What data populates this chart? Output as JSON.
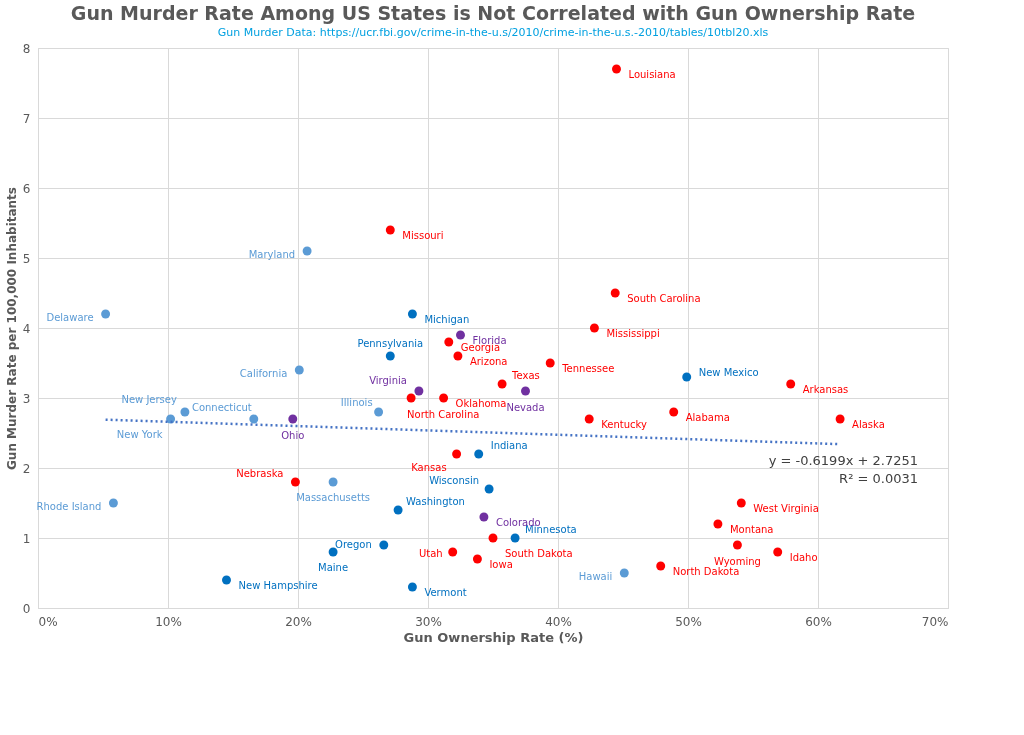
{
  "chart_data": {
    "type": "scatter",
    "title": "Gun Murder Rate Among US States is Not Correlated with Gun Ownership Rate",
    "subtitle": "Gun Murder Data: https://ucr.fbi.gov/crime-in-the-u.s/2010/crime-in-the-u.s.-2010/tables/10tbl20.xls",
    "xlabel": "Gun Ownership Rate (%)",
    "ylabel": "Gun Murder Rate per 100,000 Inhabitants",
    "xlim": [
      0,
      70
    ],
    "xticks": [
      {
        "value": 0,
        "label": "0%"
      },
      {
        "value": 10,
        "label": "10%"
      },
      {
        "value": 20,
        "label": "20%"
      },
      {
        "value": 30,
        "label": "30%"
      },
      {
        "value": 40,
        "label": "40%"
      },
      {
        "value": 50,
        "label": "50%"
      },
      {
        "value": 60,
        "label": "60%"
      },
      {
        "value": 70,
        "label": "70%"
      }
    ],
    "ylim": [
      0,
      8
    ],
    "yticks": [
      0,
      1,
      2,
      3,
      4,
      5,
      6,
      7,
      8
    ],
    "grid": true,
    "legend": false,
    "marker": "circle",
    "series": [
      {
        "color": "#ff0000",
        "x": [
          44.5,
          27.1,
          44.4,
          42.8,
          31.6,
          32.3,
          39.4,
          35.7,
          31.2,
          28.7,
          57.9,
          48.9,
          42.4,
          61.7,
          32.2,
          19.8,
          54.1,
          52.3,
          53.8,
          56.9,
          31.9,
          35.0,
          33.8,
          47.9
        ],
        "values": [
          7.7,
          5.4,
          4.5,
          4.0,
          3.8,
          3.6,
          3.5,
          3.2,
          3.0,
          3.0,
          3.2,
          2.8,
          2.7,
          2.7,
          2.2,
          1.8,
          1.5,
          1.2,
          0.9,
          0.8,
          0.8,
          1.0,
          0.7,
          0.6
        ]
      },
      {
        "color": "#5b9bd5",
        "x": [
          20.7,
          5.2,
          20.1,
          11.3,
          10.2,
          16.6,
          26.2,
          22.7,
          5.8,
          45.1
        ],
        "values": [
          5.1,
          4.2,
          3.4,
          2.8,
          2.7,
          2.7,
          2.8,
          1.8,
          1.5,
          0.5
        ]
      },
      {
        "color": "#0070c0",
        "x": [
          28.8,
          27.1,
          49.9,
          33.9,
          34.7,
          27.7,
          36.7,
          26.6,
          22.7,
          14.5,
          28.8
        ],
        "values": [
          4.2,
          3.6,
          3.3,
          2.2,
          1.7,
          1.4,
          1.0,
          0.9,
          0.8,
          0.4,
          0.3
        ]
      },
      {
        "color": "#7030a0",
        "x": [
          32.5,
          29.3,
          37.5,
          19.6,
          34.3
        ],
        "values": [
          3.9,
          3.1,
          3.1,
          2.7,
          1.3
        ]
      },
      {
        "type": "line",
        "color": "#4472c4",
        "line_style": "dotted",
        "marker": "none",
        "x": [
          5.2,
          61.7
        ],
        "values": [
          2.69,
          2.34
        ]
      }
    ],
    "annotations": [
      {
        "text": "Louisiana",
        "x": 44.5,
        "y": 7.7
      },
      {
        "text": "Missouri",
        "x": 27.1,
        "y": 5.4
      },
      {
        "text": "South Carolina",
        "x": 44.4,
        "y": 4.5
      },
      {
        "text": "Mississippi",
        "x": 42.8,
        "y": 4.0
      },
      {
        "text": "Georgia",
        "x": 31.6,
        "y": 3.8
      },
      {
        "text": "Arizona",
        "x": 32.3,
        "y": 3.6
      },
      {
        "text": "Tennessee",
        "x": 39.4,
        "y": 3.5
      },
      {
        "text": "Texas",
        "x": 35.7,
        "y": 3.2
      },
      {
        "text": "Oklahoma",
        "x": 31.2,
        "y": 3.0
      },
      {
        "text": "North Carolina",
        "x": 28.7,
        "y": 3.0
      },
      {
        "text": "Arkansas",
        "x": 57.9,
        "y": 3.2
      },
      {
        "text": "Alabama",
        "x": 48.9,
        "y": 2.8
      },
      {
        "text": "Kentucky",
        "x": 42.4,
        "y": 2.7
      },
      {
        "text": "Alaska",
        "x": 61.7,
        "y": 2.7
      },
      {
        "text": "Kansas",
        "x": 32.2,
        "y": 2.2
      },
      {
        "text": "Nebraska",
        "x": 19.8,
        "y": 1.8
      },
      {
        "text": "West Virginia",
        "x": 54.1,
        "y": 1.5
      },
      {
        "text": "Montana",
        "x": 52.3,
        "y": 1.2
      },
      {
        "text": "Wyoming",
        "x": 53.8,
        "y": 0.9
      },
      {
        "text": "Idaho",
        "x": 56.9,
        "y": 0.8
      },
      {
        "text": "Utah",
        "x": 31.9,
        "y": 0.8
      },
      {
        "text": "South Dakota",
        "x": 35.0,
        "y": 1.0
      },
      {
        "text": "Iowa",
        "x": 33.8,
        "y": 0.7
      },
      {
        "text": "North Dakota",
        "x": 47.9,
        "y": 0.6
      },
      {
        "text": "Maryland",
        "x": 20.7,
        "y": 5.1
      },
      {
        "text": "Delaware",
        "x": 5.2,
        "y": 4.2
      },
      {
        "text": "California",
        "x": 20.1,
        "y": 3.4
      },
      {
        "text": "New Jersey",
        "x": 11.3,
        "y": 2.8
      },
      {
        "text": "New York",
        "x": 10.2,
        "y": 2.7
      },
      {
        "text": "Connecticut",
        "x": 16.6,
        "y": 2.7
      },
      {
        "text": "Illinois",
        "x": 26.2,
        "y": 2.8
      },
      {
        "text": "Massachusetts",
        "x": 22.7,
        "y": 1.8
      },
      {
        "text": "Rhode Island",
        "x": 5.8,
        "y": 1.5
      },
      {
        "text": "Hawaii",
        "x": 45.1,
        "y": 0.5
      },
      {
        "text": "Michigan",
        "x": 28.8,
        "y": 4.2
      },
      {
        "text": "Pennsylvania",
        "x": 27.1,
        "y": 3.6
      },
      {
        "text": "New Mexico",
        "x": 49.9,
        "y": 3.3
      },
      {
        "text": "Indiana",
        "x": 33.9,
        "y": 2.2
      },
      {
        "text": "Wisconsin",
        "x": 34.7,
        "y": 1.7
      },
      {
        "text": "Washington",
        "x": 27.7,
        "y": 1.4
      },
      {
        "text": "Minnesota",
        "x": 36.7,
        "y": 1.0
      },
      {
        "text": "Oregon",
        "x": 26.6,
        "y": 0.9
      },
      {
        "text": "Maine",
        "x": 22.7,
        "y": 0.8
      },
      {
        "text": "New Hampshire",
        "x": 14.5,
        "y": 0.4
      },
      {
        "text": "Vermont",
        "x": 28.8,
        "y": 0.3
      },
      {
        "text": "Florida",
        "x": 32.5,
        "y": 3.9
      },
      {
        "text": "Virginia",
        "x": 29.3,
        "y": 3.1
      },
      {
        "text": "Nevada",
        "x": 37.5,
        "y": 3.1
      },
      {
        "text": "Ohio",
        "x": 19.6,
        "y": 2.7
      },
      {
        "text": "Colorado",
        "x": 34.3,
        "y": 1.3
      },
      "y = -0.6199x + 2.7251",
      "R² = 0.0031"
    ]
  }
}
